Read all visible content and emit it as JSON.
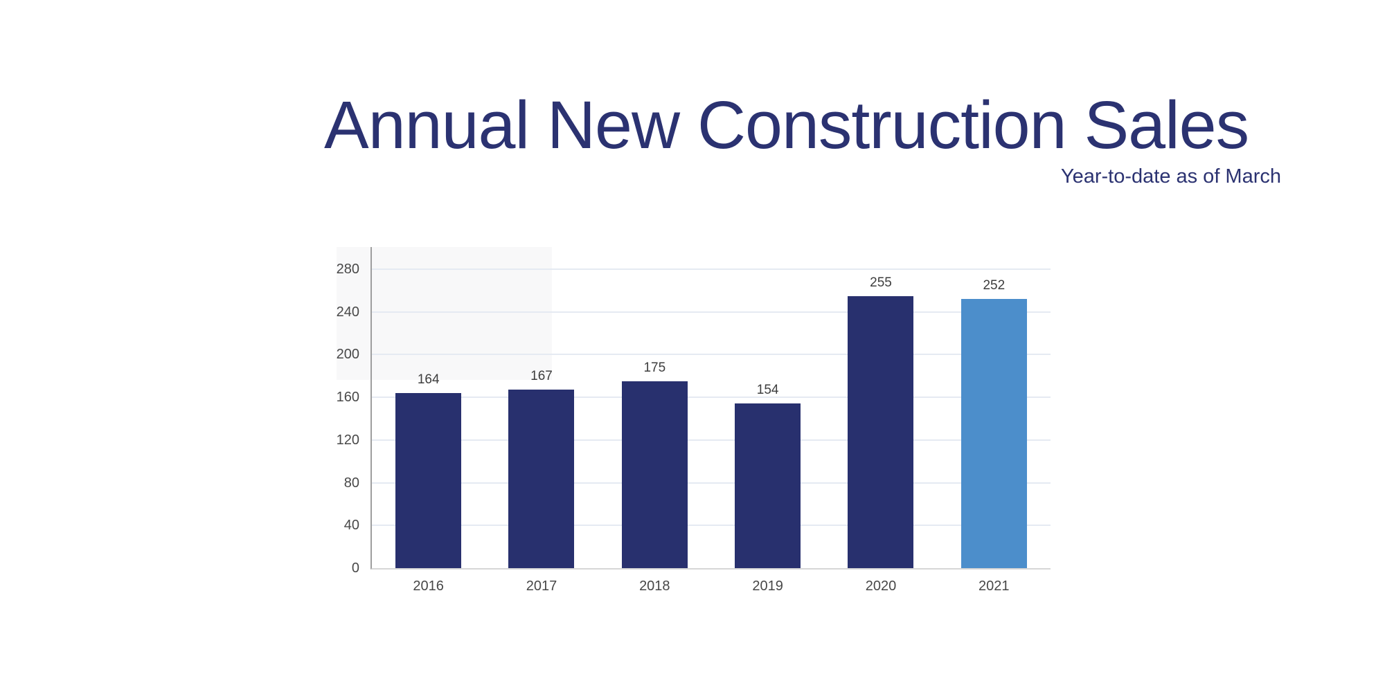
{
  "header": {
    "title": "Annual New Construction Sales",
    "subtitle": "Year-to-date as of March"
  },
  "chart_data": {
    "type": "bar",
    "title": "Annual New Construction Sales",
    "subtitle": "Year-to-date as of March",
    "categories": [
      "2016",
      "2017",
      "2018",
      "2019",
      "2020",
      "2021"
    ],
    "values": [
      164,
      167,
      175,
      154,
      255,
      252
    ],
    "bar_colors": [
      "#28306e",
      "#28306e",
      "#28306e",
      "#28306e",
      "#28306e",
      "#4c8ecb"
    ],
    "highlight_index": 5,
    "xlabel": "",
    "ylabel": "",
    "ylim": [
      0,
      280
    ],
    "yticks": [
      0,
      40,
      80,
      120,
      160,
      200,
      240,
      280
    ],
    "grid": true,
    "legend": false,
    "data_labels": true,
    "colors": {
      "title": "#2b3271",
      "bar_default": "#28306e",
      "bar_highlight": "#4c8ecb",
      "gridline": "#e5eaf2",
      "y_axis_line": "#9e9e9e",
      "baseline": "#d6d6d6",
      "tick_label": "#484848",
      "value_label": "#3d3d3d"
    }
  }
}
